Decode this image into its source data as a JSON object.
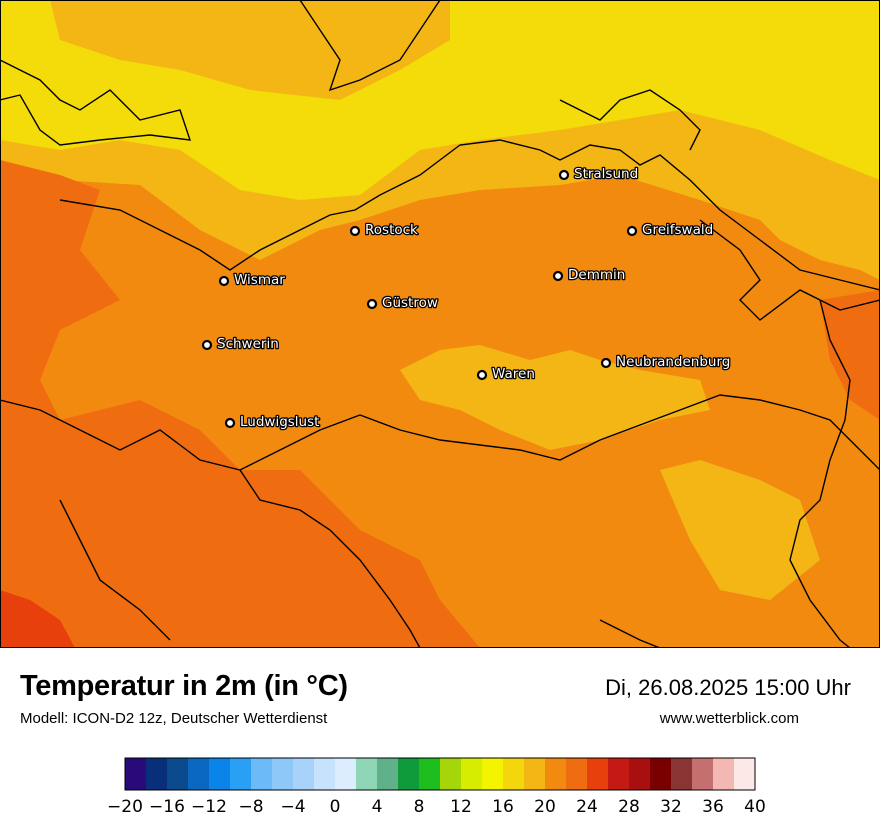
{
  "map": {
    "cities": [
      {
        "name": "Stralsund"
      },
      {
        "name": "Rostock"
      },
      {
        "name": "Greifswald"
      },
      {
        "name": "Wismar"
      },
      {
        "name": "Demmin"
      },
      {
        "name": "Güstrow"
      },
      {
        "name": "Schwerin"
      },
      {
        "name": "Neubrandenburg"
      },
      {
        "name": "Waren"
      },
      {
        "name": "Ludwigslust"
      }
    ]
  },
  "footer": {
    "title": "Temperatur in 2m (in °C)",
    "model": "Modell: ICON-D2 12z, Deutscher Wetterdienst",
    "datetime": "Di, 26.08.2025 15:00 Uhr",
    "website": "www.wetterblick.com"
  },
  "legend": {
    "min": -20,
    "max": 40,
    "step": 2,
    "tick_labels": [
      "−20",
      "−16",
      "−12",
      "−8",
      "−4",
      "0",
      "4",
      "8",
      "12",
      "16",
      "20",
      "24",
      "28",
      "32",
      "36",
      "40"
    ],
    "colors": [
      "#2a0a7a",
      "#0a2f7a",
      "#0b4a8c",
      "#0b68c2",
      "#0a84e8",
      "#2aa0f5",
      "#6cbaf7",
      "#8ec8f8",
      "#a8d2fa",
      "#c6e2fc",
      "#dceefe",
      "#8fd6b6",
      "#60b08a",
      "#0f9a3c",
      "#1ebd1e",
      "#a6d60a",
      "#d6ec00",
      "#f4f400",
      "#f4d60c",
      "#f4b614",
      "#f28a10",
      "#f06c10",
      "#e8400c",
      "#c41a14",
      "#a81010",
      "#7a0000",
      "#8a3434",
      "#c47070",
      "#f4b8b4",
      "#fde8e8"
    ]
  },
  "colors": {
    "sea": "#f4dc0a",
    "warm_land": "#f28a10",
    "hot_land": "#f06c10",
    "mild_land": "#f4b614"
  }
}
